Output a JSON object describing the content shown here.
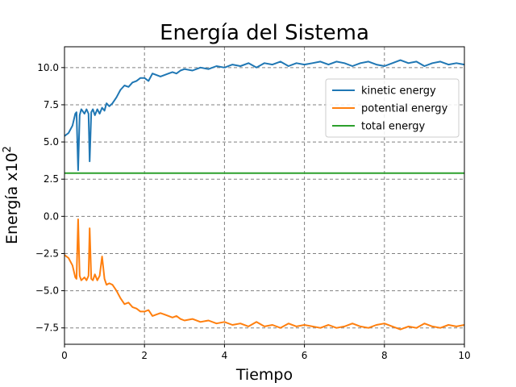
{
  "chart_data": {
    "type": "line",
    "title": "Energía del Sistema",
    "xlabel": "Tiempo",
    "ylabel_main": "Energía x10",
    "ylabel_exp": "2",
    "xlim": [
      0,
      10
    ],
    "ylim": [
      -8.6,
      11.4
    ],
    "xticks": [
      0,
      2,
      4,
      6,
      8,
      10
    ],
    "xtick_labels": [
      "0",
      "2",
      "4",
      "6",
      "8",
      "10"
    ],
    "yticks": [
      -7.5,
      -5.0,
      -2.5,
      0.0,
      2.5,
      5.0,
      7.5,
      10.0
    ],
    "ytick_labels": [
      "−7.5",
      "−5.0",
      "−2.5",
      "0.0",
      "2.5",
      "5.0",
      "7.5",
      "10.0"
    ],
    "grid": true,
    "legend_position": "upper right",
    "series": [
      {
        "name": "kinetic energy",
        "color": "#1f77b4",
        "x": [
          0,
          0.1,
          0.2,
          0.27,
          0.3,
          0.34,
          0.38,
          0.42,
          0.5,
          0.55,
          0.6,
          0.63,
          0.67,
          0.71,
          0.76,
          0.82,
          0.88,
          0.94,
          1.0,
          1.05,
          1.12,
          1.2,
          1.3,
          1.4,
          1.5,
          1.6,
          1.7,
          1.8,
          1.9,
          2.0,
          2.1,
          2.2,
          2.3,
          2.4,
          2.5,
          2.6,
          2.7,
          2.8,
          2.9,
          3.0,
          3.2,
          3.4,
          3.6,
          3.8,
          4.0,
          4.2,
          4.4,
          4.6,
          4.8,
          5.0,
          5.2,
          5.4,
          5.6,
          5.8,
          6.0,
          6.2,
          6.4,
          6.6,
          6.8,
          7.0,
          7.2,
          7.4,
          7.6,
          7.8,
          8.0,
          8.2,
          8.4,
          8.6,
          8.8,
          9.0,
          9.2,
          9.4,
          9.6,
          9.8,
          10.0
        ],
        "values": [
          5.4,
          5.6,
          6.1,
          6.9,
          7.0,
          3.1,
          6.8,
          7.2,
          6.9,
          7.2,
          6.9,
          3.7,
          7.0,
          7.2,
          6.8,
          7.2,
          6.9,
          7.3,
          7.1,
          7.6,
          7.4,
          7.6,
          8.0,
          8.5,
          8.8,
          8.7,
          9.0,
          9.1,
          9.3,
          9.3,
          9.1,
          9.6,
          9.5,
          9.4,
          9.5,
          9.6,
          9.7,
          9.6,
          9.8,
          9.9,
          9.8,
          10.0,
          9.9,
          10.1,
          10.0,
          10.2,
          10.1,
          10.3,
          10.0,
          10.3,
          10.2,
          10.4,
          10.1,
          10.3,
          10.2,
          10.3,
          10.4,
          10.2,
          10.4,
          10.3,
          10.1,
          10.3,
          10.4,
          10.2,
          10.1,
          10.3,
          10.5,
          10.3,
          10.4,
          10.1,
          10.3,
          10.4,
          10.2,
          10.3,
          10.2
        ]
      },
      {
        "name": "potential energy",
        "color": "#ff7f0e",
        "x": [
          0,
          0.1,
          0.2,
          0.27,
          0.3,
          0.34,
          0.38,
          0.42,
          0.5,
          0.55,
          0.6,
          0.63,
          0.67,
          0.71,
          0.76,
          0.82,
          0.88,
          0.94,
          1.0,
          1.05,
          1.12,
          1.2,
          1.3,
          1.4,
          1.5,
          1.6,
          1.7,
          1.8,
          1.9,
          2.0,
          2.1,
          2.2,
          2.3,
          2.4,
          2.5,
          2.6,
          2.7,
          2.8,
          2.9,
          3.0,
          3.2,
          3.4,
          3.6,
          3.8,
          4.0,
          4.2,
          4.4,
          4.6,
          4.8,
          5.0,
          5.2,
          5.4,
          5.6,
          5.8,
          6.0,
          6.2,
          6.4,
          6.6,
          6.8,
          7.0,
          7.2,
          7.4,
          7.6,
          7.8,
          8.0,
          8.2,
          8.4,
          8.6,
          8.8,
          9.0,
          9.2,
          9.4,
          9.6,
          9.8,
          10.0
        ],
        "values": [
          -2.6,
          -2.8,
          -3.3,
          -4.1,
          -4.2,
          -0.2,
          -4.0,
          -4.3,
          -4.1,
          -4.3,
          -4.0,
          -0.8,
          -4.2,
          -4.3,
          -3.9,
          -4.3,
          -4.0,
          -2.7,
          -4.2,
          -4.6,
          -4.5,
          -4.6,
          -5.0,
          -5.5,
          -5.9,
          -5.8,
          -6.1,
          -6.2,
          -6.4,
          -6.4,
          -6.3,
          -6.7,
          -6.6,
          -6.5,
          -6.6,
          -6.7,
          -6.8,
          -6.7,
          -6.9,
          -7.0,
          -6.9,
          -7.1,
          -7.0,
          -7.2,
          -7.1,
          -7.3,
          -7.2,
          -7.4,
          -7.1,
          -7.4,
          -7.3,
          -7.5,
          -7.2,
          -7.4,
          -7.3,
          -7.4,
          -7.5,
          -7.3,
          -7.5,
          -7.4,
          -7.2,
          -7.4,
          -7.5,
          -7.3,
          -7.2,
          -7.4,
          -7.6,
          -7.4,
          -7.5,
          -7.2,
          -7.4,
          -7.5,
          -7.3,
          -7.4,
          -7.3
        ]
      },
      {
        "name": "total energy",
        "color": "#2ca02c",
        "x": [
          0,
          10
        ],
        "values": [
          2.9,
          2.9
        ]
      }
    ]
  }
}
